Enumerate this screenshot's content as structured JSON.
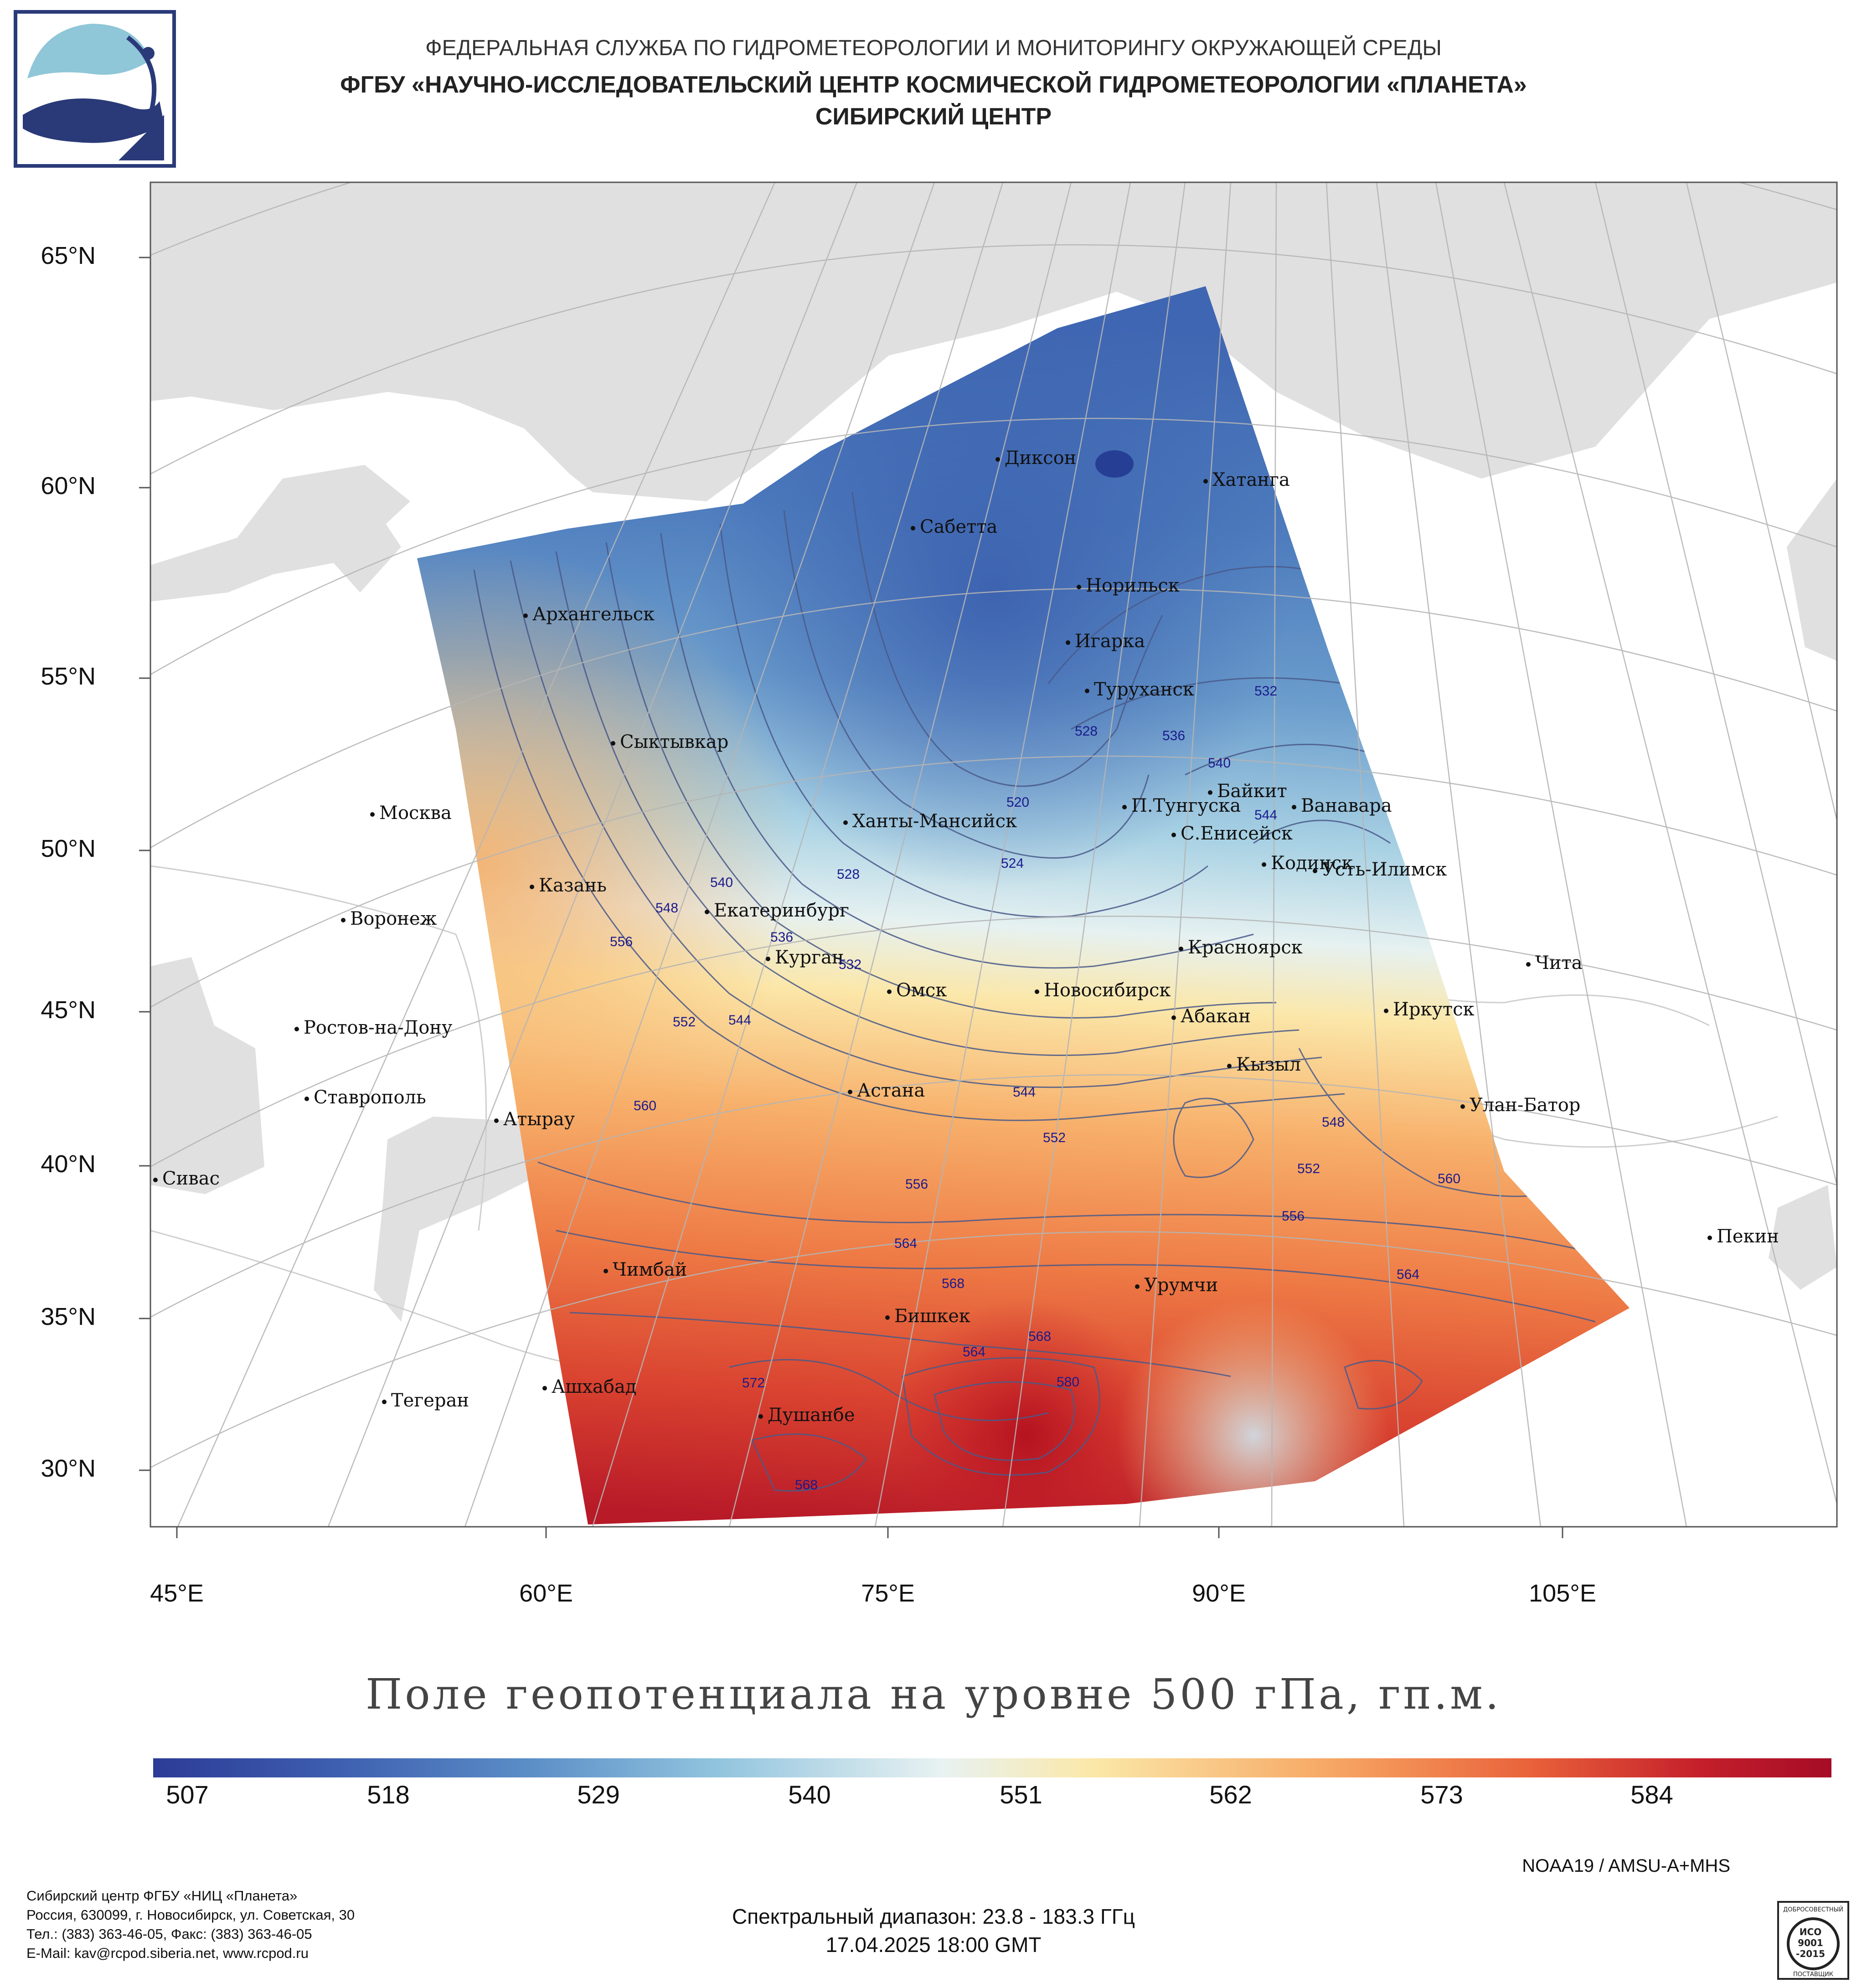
{
  "header": {
    "line1": "ФЕДЕРАЛЬНАЯ СЛУЖБА ПО ГИДРОМЕТЕОРОЛОГИИ И МОНИТОРИНГУ ОКРУЖАЮЩЕЙ СРЕДЫ",
    "line2": "ФГБУ «НАУЧНО-ИССЛЕДОВАТЕЛЬСКИЙ ЦЕНТР КОСМИЧЕСКОЙ ГИДРОМЕТЕОРОЛОГИИ «ПЛАНЕТА»",
    "line3": "СИБИРСКИЙ ЦЕНТР"
  },
  "map": {
    "lat_labels": [
      "65°N",
      "60°N",
      "55°N",
      "50°N",
      "45°N",
      "40°N",
      "35°N",
      "30°N"
    ],
    "lon_labels": [
      "45°E",
      "60°E",
      "75°E",
      "90°E",
      "105°E"
    ],
    "cities": [
      "Диксон",
      "Хатанга",
      "Сабетта",
      "Норильск",
      "Архангельск",
      "Игарка",
      "Туруханск",
      "Сыктывкар",
      "Москва",
      "Ханты-Мансийск",
      "П.Тунгуска",
      "Байкит",
      "Ванавара",
      "С.Енисейск",
      "Кодинск",
      "Усть-Илимск",
      "Казань",
      "Екатеринбург",
      "Воронеж",
      "Курган",
      "Омск",
      "Новосибирск",
      "Красноярск",
      "Чита",
      "Ростов-на-Дону",
      "Абакан",
      "Иркутск",
      "Кызыл",
      "Ставрополь",
      "Астана",
      "Атырау",
      "Улан-Батор",
      "Сивас",
      "Пекин",
      "Чимбай",
      "Урумчи",
      "Бишкек",
      "Ашхабад",
      "Тегеран",
      "Душанбе"
    ],
    "contour_labels": [
      "532",
      "528",
      "536",
      "540",
      "520",
      "544",
      "524",
      "528",
      "540",
      "548",
      "556",
      "536",
      "532",
      "552",
      "544",
      "560",
      "544",
      "552",
      "548",
      "556",
      "552",
      "560",
      "556",
      "564",
      "568",
      "564",
      "568",
      "564",
      "572",
      "580",
      "568"
    ],
    "colors": {
      "land": "#e0e0e0",
      "ocean": "#ffffff",
      "grid": "#b5b5b5",
      "contour": "#4a5a8a",
      "contour_label": "#1a1a8c"
    }
  },
  "title": "Поле геопотенциала на уровне 500 гПа, гп.м.",
  "colorbar": {
    "ticks": [
      "507",
      "518",
      "529",
      "540",
      "551",
      "562",
      "573",
      "584"
    ],
    "min": 507,
    "max": 592,
    "colors": [
      "#2c3b97",
      "#3e5fb0",
      "#5a8cc6",
      "#8ec2dd",
      "#e8f2f2",
      "#fbe8a8",
      "#f7a865",
      "#e9623a",
      "#c5202b",
      "#a50c26"
    ]
  },
  "satellite": "NOAA19 / AMSU-A+MHS",
  "spectral": "Спектральный диапазон: 23.8 - 183.3 ГГц",
  "datetime": "17.04.2025 18:00 GMT",
  "footer": {
    "line1": "Сибирский центр ФГБУ «НИЦ «Планета»",
    "line2": "Россия, 630099, г. Новосибирск, ул. Советская, 30",
    "line3": "Тел.: (383) 363-46-05, Факс: (383) 363-46-05",
    "line4": "E-Mail: kav@rcpod.siberia.net, www.rcpod.ru"
  },
  "iso_badge": {
    "top": "ДОБРОСОВЕСТНЫЙ",
    "l1": "ИСО",
    "l2": "9001",
    "l3": "-2015",
    "bottom": "ПОСТАВЩИК"
  }
}
